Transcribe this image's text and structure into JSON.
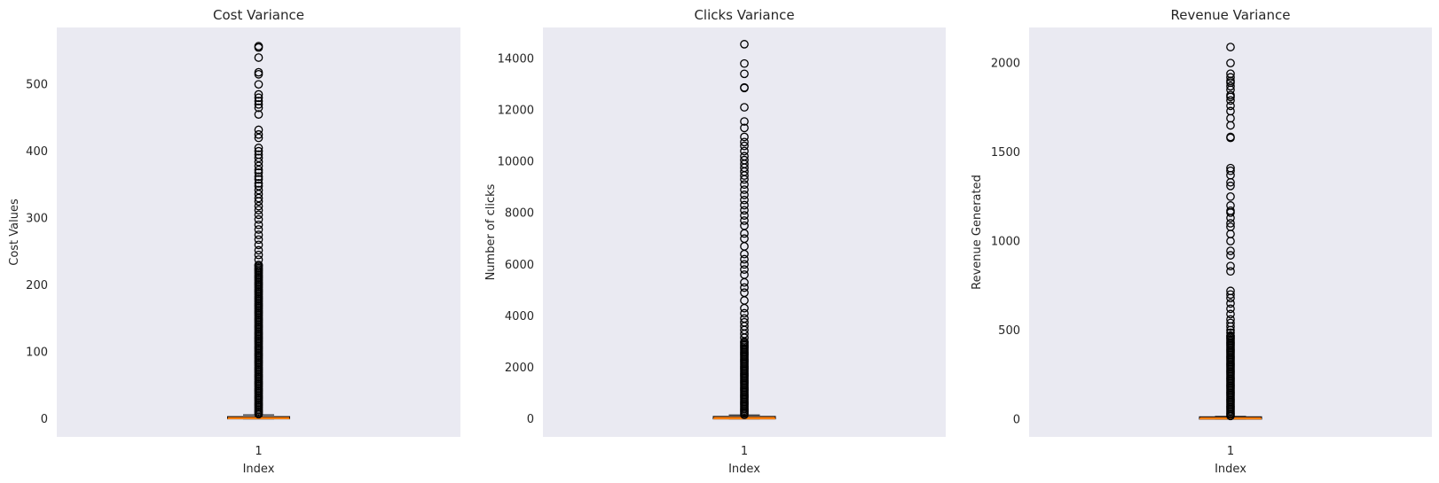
{
  "figure": {
    "background": "#ffffff",
    "panel_background": "#eaeaf2",
    "box_color": "#ff7f0e",
    "edge_color": "#000000"
  },
  "chart_data": [
    {
      "type": "box",
      "title": "Cost Variance",
      "xlabel": "Index",
      "ylabel": "Cost Values",
      "categories": [
        "1"
      ],
      "ylim": [
        -27,
        585
      ],
      "yticks": [
        0,
        100,
        200,
        300,
        400,
        500
      ],
      "grid": false,
      "box": {
        "whislo": 0,
        "q1": 0,
        "median": 0.5,
        "q3": 2,
        "whishi": 6
      },
      "outlier_range": [
        7,
        230
      ],
      "outliers": [
        230,
        238,
        245,
        252,
        260,
        268,
        275,
        283,
        290,
        298,
        305,
        312,
        318,
        325,
        330,
        336,
        342,
        348,
        352,
        358,
        362,
        368,
        372,
        378,
        384,
        390,
        395,
        400,
        405,
        420,
        425,
        432,
        455,
        465,
        470,
        475,
        480,
        485,
        500,
        515,
        518,
        540,
        555,
        557
      ]
    },
    {
      "type": "box",
      "title": "Clicks Variance",
      "xlabel": "Index",
      "ylabel": "Number of clicks",
      "categories": [
        "1"
      ],
      "ylim": [
        -700,
        15200
      ],
      "yticks": [
        0,
        2000,
        4000,
        6000,
        8000,
        10000,
        12000,
        14000
      ],
      "grid": false,
      "box": {
        "whislo": 0,
        "q1": 0,
        "median": 10,
        "q3": 60,
        "whishi": 150
      },
      "outlier_range": [
        160,
        3000
      ],
      "outliers": [
        3000,
        3150,
        3300,
        3450,
        3600,
        3750,
        3900,
        4100,
        4300,
        4600,
        4900,
        5100,
        5300,
        5600,
        5800,
        6000,
        6200,
        6400,
        6700,
        7000,
        7200,
        7500,
        7700,
        7900,
        8100,
        8300,
        8500,
        8700,
        8900,
        9100,
        9300,
        9450,
        9600,
        9750,
        9900,
        10050,
        10200,
        10400,
        10600,
        10750,
        10950,
        11300,
        11550,
        12100,
        12850,
        12870,
        13400,
        13800,
        14550
      ]
    },
    {
      "type": "box",
      "title": "Revenue Variance",
      "xlabel": "Index",
      "ylabel": "Revenue Generated",
      "categories": [
        "1"
      ],
      "ylim": [
        -100,
        2200
      ],
      "yticks": [
        0,
        500,
        1000,
        1500,
        2000
      ],
      "grid": false,
      "box": {
        "whislo": 0,
        "q1": 0,
        "median": 2,
        "q3": 8,
        "whishi": 15
      },
      "outlier_range": [
        18,
        470
      ],
      "outliers": [
        470,
        485,
        500,
        520,
        540,
        560,
        590,
        620,
        650,
        680,
        700,
        720,
        830,
        860,
        920,
        945,
        1000,
        1040,
        1080,
        1100,
        1130,
        1160,
        1170,
        1200,
        1250,
        1310,
        1330,
        1370,
        1395,
        1410,
        1580,
        1585,
        1650,
        1690,
        1730,
        1760,
        1790,
        1810,
        1820,
        1850,
        1870,
        1890,
        1900,
        1920,
        1940,
        2000,
        2090
      ]
    }
  ]
}
